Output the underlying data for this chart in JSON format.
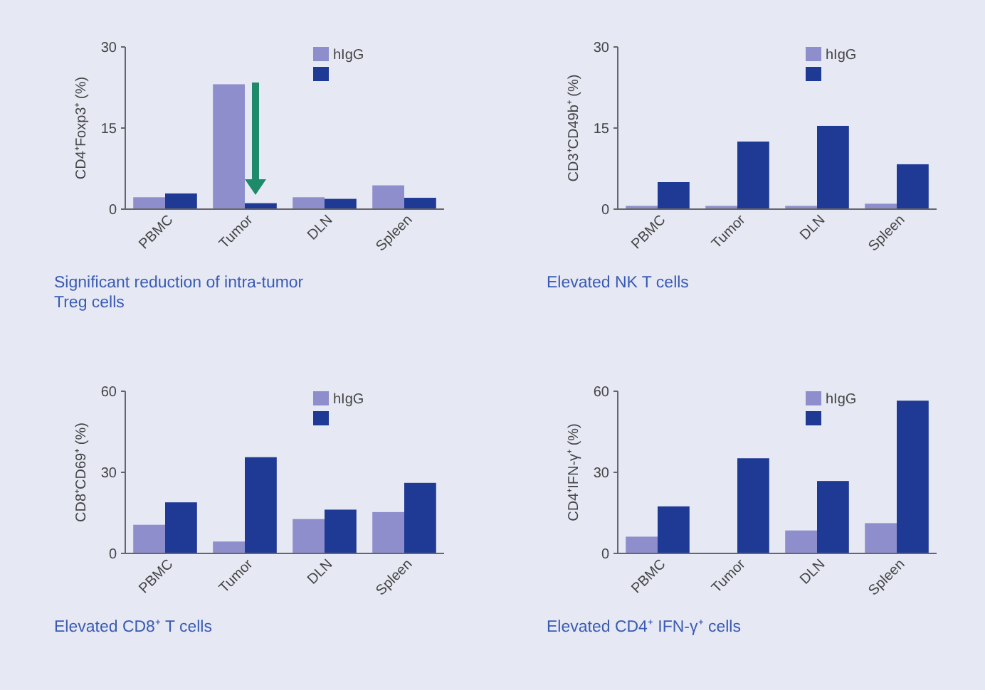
{
  "chart_data": [
    {
      "type": "bar",
      "title": "Significant reduction of intra-tumor Treg cells",
      "ylabel": "CD4⁺Foxp3⁺ (%)",
      "categories": [
        "PBMC",
        "Tumor",
        "DLN",
        "Spleen"
      ],
      "ylim": [
        0,
        30
      ],
      "yticks": [
        0,
        15,
        30
      ],
      "legend": "top right",
      "series": [
        {
          "name": "hIgG",
          "color": "#8e8ecc",
          "values": [
            2.2,
            23.1,
            2.2,
            4.4
          ]
        },
        {
          "color": "#1f3a94",
          "values": [
            2.9,
            1.1,
            1.9,
            2.1
          ]
        }
      ]
    },
    {
      "type": "bar",
      "title": "Elevated NK T cells",
      "ylabel": "CD3⁺CD49b⁺ (%)",
      "categories": [
        "PBMC",
        "Tumor",
        "DLN",
        "Spleen"
      ],
      "ylim": [
        0,
        30
      ],
      "yticks": [
        0,
        15,
        30
      ],
      "legend": "top right",
      "series": [
        {
          "name": "hIgG",
          "color": "#8e8ecc",
          "values": [
            0.6,
            0.6,
            0.6,
            1.0
          ]
        },
        {
          "color": "#1f3a94",
          "values": [
            5.0,
            12.5,
            15.4,
            8.3
          ]
        }
      ]
    },
    {
      "type": "bar",
      "title": "Elevated CD8⁺ T cells",
      "ylabel": "CD8⁺CD69⁺ (%)",
      "categories": [
        "PBMC",
        "Tumor",
        "DLN",
        "Spleen"
      ],
      "ylim": [
        0,
        60
      ],
      "yticks": [
        0,
        30,
        60
      ],
      "legend": "top right",
      "series": [
        {
          "name": "hIgG",
          "color": "#8e8ecc",
          "values": [
            10.6,
            4.4,
            12.7,
            15.3
          ]
        },
        {
          "color": "#1f3a94",
          "values": [
            18.9,
            35.6,
            16.2,
            26.1
          ]
        }
      ]
    },
    {
      "type": "bar",
      "title": "Elevated CD4⁺ IFN-γ⁺ cells",
      "ylabel": "CD4⁺IFN-γ⁺ (%)",
      "categories": [
        "PBMC",
        "Tumor",
        "DLN",
        "Spleen"
      ],
      "ylim": [
        0,
        60
      ],
      "yticks": [
        0,
        30,
        60
      ],
      "legend": "top right",
      "series": [
        {
          "name": "hIgG",
          "color": "#8e8ecc",
          "values": [
            6.2,
            0,
            8.5,
            11.2
          ]
        },
        {
          "color": "#1f3a94",
          "values": [
            17.4,
            35.2,
            26.8,
            56.5
          ]
        }
      ]
    }
  ]
}
